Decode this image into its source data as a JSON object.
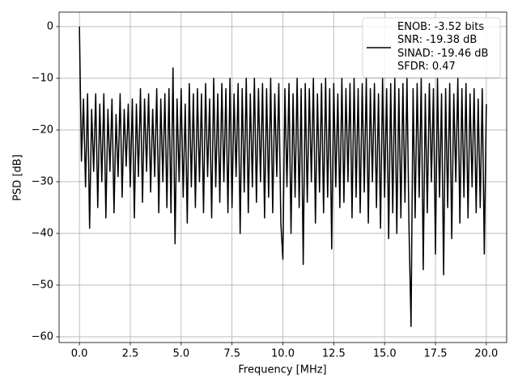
{
  "chart_data": {
    "type": "line",
    "xlabel": "Frequency [MHz]",
    "ylabel": "PSD [dB]",
    "x": [
      0,
      0.1,
      0.2,
      0.3,
      0.4,
      0.5,
      0.6,
      0.7,
      0.8,
      0.9,
      1,
      1.1,
      1.2,
      1.3,
      1.4,
      1.5,
      1.6,
      1.7,
      1.8,
      1.9,
      2,
      2.1,
      2.2,
      2.3,
      2.4,
      2.5,
      2.6,
      2.7,
      2.8,
      2.9,
      3,
      3.1,
      3.2,
      3.3,
      3.4,
      3.5,
      3.6,
      3.7,
      3.8,
      3.9,
      4,
      4.1,
      4.2,
      4.3,
      4.4,
      4.5,
      4.6,
      4.7,
      4.8,
      4.9,
      5,
      5.1,
      5.2,
      5.3,
      5.4,
      5.5,
      5.6,
      5.7,
      5.8,
      5.9,
      6,
      6.1,
      6.2,
      6.3,
      6.4,
      6.5,
      6.6,
      6.7,
      6.8,
      6.9,
      7,
      7.1,
      7.2,
      7.3,
      7.4,
      7.5,
      7.6,
      7.7,
      7.8,
      7.9,
      8,
      8.1,
      8.2,
      8.3,
      8.4,
      8.5,
      8.6,
      8.7,
      8.8,
      8.9,
      9,
      9.1,
      9.2,
      9.3,
      9.4,
      9.5,
      9.6,
      9.7,
      9.8,
      9.9,
      10,
      10.1,
      10.2,
      10.3,
      10.4,
      10.5,
      10.6,
      10.7,
      10.8,
      10.9,
      11,
      11.1,
      11.2,
      11.3,
      11.4,
      11.5,
      11.6,
      11.7,
      11.8,
      11.9,
      12,
      12.1,
      12.2,
      12.3,
      12.4,
      12.5,
      12.6,
      12.7,
      12.8,
      12.9,
      13,
      13.1,
      13.2,
      13.3,
      13.4,
      13.5,
      13.6,
      13.7,
      13.8,
      13.9,
      14,
      14.1,
      14.2,
      14.3,
      14.4,
      14.5,
      14.6,
      14.7,
      14.8,
      14.9,
      15,
      15.1,
      15.2,
      15.3,
      15.4,
      15.5,
      15.6,
      15.7,
      15.8,
      15.9,
      16,
      16.1,
      16.2,
      16.3,
      16.4,
      16.5,
      16.6,
      16.7,
      16.8,
      16.9,
      17,
      17.1,
      17.2,
      17.3,
      17.4,
      17.5,
      17.6,
      17.7,
      17.8,
      17.9,
      18,
      18.1,
      18.2,
      18.3,
      18.4,
      18.5,
      18.6,
      18.7,
      18.8,
      18.9,
      19,
      19.1,
      19.2,
      19.3,
      19.4,
      19.5,
      19.6,
      19.7,
      19.8,
      19.9,
      20
    ],
    "series": [
      {
        "name": "ENOB: -3.52 bits\nSNR: -19.38 dB\nSINAD: -19.46 dB\nSFDR: 0.47",
        "color": "#000000",
        "values": [
          0,
          -26,
          -14,
          -31,
          -13,
          -39,
          -16,
          -28,
          -13,
          -35,
          -15,
          -30,
          -13,
          -37,
          -16,
          -28,
          -14,
          -36,
          -17,
          -29,
          -13,
          -33,
          -16,
          -27,
          -15,
          -31,
          -14,
          -37,
          -15,
          -29,
          -12,
          -34,
          -14,
          -28,
          -13,
          -32,
          -16,
          -29,
          -12,
          -36,
          -14,
          -30,
          -13,
          -35,
          -12,
          -36,
          -8,
          -42,
          -14,
          -30,
          -12,
          -33,
          -15,
          -38,
          -11,
          -31,
          -13,
          -35,
          -12,
          -30,
          -13,
          -36,
          -11,
          -29,
          -14,
          -37,
          -10,
          -31,
          -13,
          -34,
          -11,
          -30,
          -12,
          -36,
          -10,
          -35,
          -13,
          -29,
          -11,
          -40,
          -12,
          -32,
          -10,
          -36,
          -13,
          -31,
          -10,
          -34,
          -12,
          -30,
          -11,
          -37,
          -12,
          -33,
          -10,
          -36,
          -13,
          -29,
          -11,
          -38,
          -45,
          -12,
          -31,
          -11,
          -40,
          -13,
          -33,
          -10,
          -35,
          -12,
          -46,
          -11,
          -34,
          -12,
          -30,
          -10,
          -38,
          -13,
          -32,
          -11,
          -36,
          -10,
          -33,
          -12,
          -43,
          -11,
          -31,
          -13,
          -35,
          -10,
          -34,
          -12,
          -30,
          -11,
          -37,
          -10,
          -33,
          -12,
          -36,
          -11,
          -32,
          -10,
          -38,
          -12,
          -30,
          -11,
          -35,
          -13,
          -39,
          -10,
          -33,
          -12,
          -41,
          -11,
          -36,
          -10,
          -40,
          -12,
          -37,
          -11,
          -34,
          -10,
          -39,
          -58,
          -12,
          -37,
          -11,
          -33,
          -10,
          -47,
          -13,
          -36,
          -11,
          -30,
          -12,
          -44,
          -10,
          -33,
          -13,
          -48,
          -12,
          -35,
          -11,
          -41,
          -13,
          -30,
          -10,
          -38,
          -12,
          -33,
          -11,
          -37,
          -13,
          -31,
          -12,
          -36,
          -14,
          -35,
          -12,
          -44,
          -15
        ]
      }
    ],
    "xlim": [
      -1,
      21
    ],
    "xticks": [
      {
        "value": 0,
        "label": "0.0"
      },
      2.5,
      {
        "value": 5,
        "label": "5.0"
      },
      7.5,
      {
        "value": 10,
        "label": "10.0"
      },
      12.5,
      {
        "value": 15,
        "label": "15.0"
      },
      17.5,
      {
        "value": 20,
        "label": "20.0"
      }
    ],
    "ylim": [
      -61.1,
      2.8
    ],
    "yticks": [
      0,
      {
        "value": -10,
        "label": "−10"
      },
      {
        "value": -20,
        "label": "−20"
      },
      {
        "value": -30,
        "label": "−30"
      },
      {
        "value": -40,
        "label": "−40"
      },
      {
        "value": -50,
        "label": "−50"
      },
      {
        "value": -60,
        "label": "−60"
      }
    ],
    "grid": true,
    "legend": "upper right"
  }
}
